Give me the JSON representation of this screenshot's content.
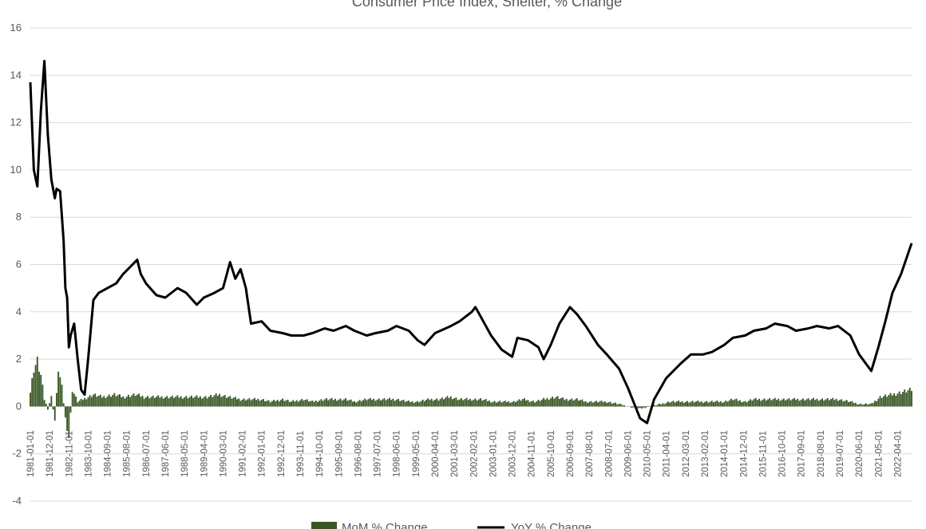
{
  "chart_data": {
    "type": "bar+line",
    "title": "Consumer Price Index, Shelter, % Change",
    "ylim": [
      -4,
      16
    ],
    "yticks": [
      -4,
      -2,
      0,
      2,
      4,
      6,
      8,
      10,
      12,
      14,
      16
    ],
    "grid": true,
    "legend_position": "bottom",
    "xtick_labels": [
      "1981-01-01",
      "1981-12-01",
      "1982-11-01",
      "1983-10-01",
      "1984-09-01",
      "1985-08-01",
      "1986-07-01",
      "1987-06-01",
      "1988-05-01",
      "1989-04-01",
      "1990-03-01",
      "1991-02-01",
      "1992-01-01",
      "1992-12-01",
      "1993-11-01",
      "1994-10-01",
      "1995-09-01",
      "1996-08-01",
      "1997-07-01",
      "1998-06-01",
      "1999-05-01",
      "2000-04-01",
      "2001-03-01",
      "2002-02-01",
      "2003-01-01",
      "2003-12-01",
      "2004-11-01",
      "2005-10-01",
      "2006-09-01",
      "2007-08-01",
      "2008-07-01",
      "2009-06-01",
      "2010-05-01",
      "2011-04-01",
      "2012-03-01",
      "2013-02-01",
      "2014-01-01",
      "2014-12-01",
      "2015-11-01",
      "2016-10-01",
      "2017-09-01",
      "2018-08-01",
      "2019-07-01",
      "2020-06-01",
      "2021-05-01",
      "2022-04-01"
    ],
    "series": [
      {
        "name": "MoM % Change",
        "kind": "bar",
        "color": "#375623",
        "points": [
          [
            "1981-01",
            0.6
          ],
          [
            "1981-03",
            1.6
          ],
          [
            "1981-05",
            1.9
          ],
          [
            "1981-07",
            1.3
          ],
          [
            "1981-09",
            0.3
          ],
          [
            "1981-11",
            -0.1
          ],
          [
            "1982-01",
            0.4
          ],
          [
            "1982-03",
            -0.6
          ],
          [
            "1982-05",
            1.6
          ],
          [
            "1982-07",
            0.8
          ],
          [
            "1982-09",
            -0.5
          ],
          [
            "1982-11",
            -1.3
          ],
          [
            "1983-01",
            0.7
          ],
          [
            "1983-04",
            0.2
          ],
          [
            "1983-07",
            0.3
          ],
          [
            "1983-10",
            0.4
          ],
          [
            "1984-01",
            0.5
          ],
          [
            "1984-06",
            0.4
          ],
          [
            "1985-01",
            0.5
          ],
          [
            "1985-06",
            0.4
          ],
          [
            "1986-01",
            0.5
          ],
          [
            "1986-06",
            0.4
          ],
          [
            "1987-01",
            0.4
          ],
          [
            "1987-06",
            0.4
          ],
          [
            "1988-01",
            0.4
          ],
          [
            "1988-06",
            0.4
          ],
          [
            "1989-01",
            0.4
          ],
          [
            "1989-06",
            0.4
          ],
          [
            "1990-01",
            0.5
          ],
          [
            "1990-06",
            0.4
          ],
          [
            "1991-01",
            0.3
          ],
          [
            "1991-06",
            0.3
          ],
          [
            "1992-01",
            0.3
          ],
          [
            "1992-06",
            0.2
          ],
          [
            "1993-01",
            0.3
          ],
          [
            "1993-06",
            0.2
          ],
          [
            "1994-01",
            0.3
          ],
          [
            "1994-06",
            0.2
          ],
          [
            "1995-01",
            0.3
          ],
          [
            "1995-06",
            0.3
          ],
          [
            "1996-01",
            0.3
          ],
          [
            "1996-06",
            0.2
          ],
          [
            "1997-01",
            0.3
          ],
          [
            "1997-06",
            0.3
          ],
          [
            "1998-01",
            0.3
          ],
          [
            "1998-06",
            0.3
          ],
          [
            "1999-01",
            0.2
          ],
          [
            "1999-06",
            0.2
          ],
          [
            "2000-01",
            0.3
          ],
          [
            "2000-06",
            0.3
          ],
          [
            "2001-01",
            0.4
          ],
          [
            "2001-06",
            0.3
          ],
          [
            "2002-01",
            0.3
          ],
          [
            "2002-06",
            0.3
          ],
          [
            "2003-01",
            0.2
          ],
          [
            "2003-06",
            0.2
          ],
          [
            "2004-01",
            0.2
          ],
          [
            "2004-06",
            0.3
          ],
          [
            "2005-01",
            0.2
          ],
          [
            "2005-06",
            0.3
          ],
          [
            "2006-01",
            0.4
          ],
          [
            "2006-06",
            0.3
          ],
          [
            "2007-01",
            0.3
          ],
          [
            "2007-06",
            0.2
          ],
          [
            "2008-01",
            0.2
          ],
          [
            "2008-06",
            0.2
          ],
          [
            "2009-01",
            0.1
          ],
          [
            "2009-06",
            0.0
          ],
          [
            "2010-01",
            -0.1
          ],
          [
            "2010-06",
            0.0
          ],
          [
            "2011-01",
            0.1
          ],
          [
            "2011-06",
            0.2
          ],
          [
            "2012-01",
            0.2
          ],
          [
            "2012-06",
            0.2
          ],
          [
            "2013-01",
            0.2
          ],
          [
            "2013-06",
            0.2
          ],
          [
            "2014-01",
            0.2
          ],
          [
            "2014-06",
            0.3
          ],
          [
            "2015-01",
            0.2
          ],
          [
            "2015-06",
            0.3
          ],
          [
            "2016-01",
            0.3
          ],
          [
            "2016-06",
            0.3
          ],
          [
            "2017-01",
            0.3
          ],
          [
            "2017-06",
            0.3
          ],
          [
            "2018-01",
            0.3
          ],
          [
            "2018-06",
            0.3
          ],
          [
            "2019-01",
            0.3
          ],
          [
            "2019-06",
            0.3
          ],
          [
            "2020-01",
            0.2
          ],
          [
            "2020-06",
            0.1
          ],
          [
            "2021-01",
            0.1
          ],
          [
            "2021-06",
            0.4
          ],
          [
            "2022-01",
            0.5
          ],
          [
            "2022-06",
            0.6
          ],
          [
            "2022-12",
            0.7
          ]
        ]
      },
      {
        "name": "YoY % Change",
        "kind": "line",
        "color": "#000000",
        "points": [
          [
            "1981-01",
            13.7
          ],
          [
            "1981-03",
            10.0
          ],
          [
            "1981-05",
            9.3
          ],
          [
            "1981-07",
            12.5
          ],
          [
            "1981-09",
            14.6
          ],
          [
            "1981-11",
            11.5
          ],
          [
            "1982-01",
            9.6
          ],
          [
            "1982-03",
            8.8
          ],
          [
            "1982-04",
            9.2
          ],
          [
            "1982-06",
            9.1
          ],
          [
            "1982-08",
            7.0
          ],
          [
            "1982-09",
            5.0
          ],
          [
            "1982-10",
            4.6
          ],
          [
            "1982-11",
            2.5
          ],
          [
            "1982-12",
            3.0
          ],
          [
            "1983-02",
            3.5
          ],
          [
            "1983-04",
            2.0
          ],
          [
            "1983-06",
            0.7
          ],
          [
            "1983-08",
            0.5
          ],
          [
            "1983-10",
            2.0
          ],
          [
            "1984-01",
            4.5
          ],
          [
            "1984-04",
            4.8
          ],
          [
            "1984-09",
            5.0
          ],
          [
            "1985-02",
            5.2
          ],
          [
            "1985-06",
            5.6
          ],
          [
            "1985-10",
            5.9
          ],
          [
            "1986-02",
            6.2
          ],
          [
            "1986-04",
            5.6
          ],
          [
            "1986-07",
            5.2
          ],
          [
            "1987-01",
            4.7
          ],
          [
            "1987-06",
            4.6
          ],
          [
            "1988-01",
            5.0
          ],
          [
            "1988-06",
            4.8
          ],
          [
            "1988-12",
            4.3
          ],
          [
            "1989-04",
            4.6
          ],
          [
            "1989-10",
            4.8
          ],
          [
            "1990-03",
            5.0
          ],
          [
            "1990-07",
            6.1
          ],
          [
            "1990-10",
            5.4
          ],
          [
            "1991-01",
            5.8
          ],
          [
            "1991-04",
            5.0
          ],
          [
            "1991-07",
            3.5
          ],
          [
            "1992-01",
            3.6
          ],
          [
            "1992-06",
            3.2
          ],
          [
            "1993-01",
            3.1
          ],
          [
            "1993-06",
            3.0
          ],
          [
            "1994-01",
            3.0
          ],
          [
            "1994-06",
            3.1
          ],
          [
            "1995-01",
            3.3
          ],
          [
            "1995-06",
            3.2
          ],
          [
            "1996-01",
            3.4
          ],
          [
            "1996-06",
            3.2
          ],
          [
            "1997-01",
            3.0
          ],
          [
            "1997-06",
            3.1
          ],
          [
            "1998-01",
            3.2
          ],
          [
            "1998-06",
            3.4
          ],
          [
            "1999-01",
            3.2
          ],
          [
            "1999-06",
            2.8
          ],
          [
            "1999-10",
            2.6
          ],
          [
            "2000-04",
            3.1
          ],
          [
            "2001-01",
            3.4
          ],
          [
            "2001-06",
            3.6
          ],
          [
            "2002-01",
            4.0
          ],
          [
            "2002-03",
            4.2
          ],
          [
            "2002-06",
            3.8
          ],
          [
            "2002-12",
            3.0
          ],
          [
            "2003-06",
            2.4
          ],
          [
            "2003-12",
            2.1
          ],
          [
            "2004-03",
            2.9
          ],
          [
            "2004-09",
            2.8
          ],
          [
            "2005-03",
            2.5
          ],
          [
            "2005-06",
            2.0
          ],
          [
            "2005-10",
            2.6
          ],
          [
            "2006-03",
            3.5
          ],
          [
            "2006-09",
            4.2
          ],
          [
            "2007-01",
            3.9
          ],
          [
            "2007-06",
            3.4
          ],
          [
            "2008-01",
            2.6
          ],
          [
            "2008-06",
            2.2
          ],
          [
            "2009-01",
            1.6
          ],
          [
            "2009-06",
            0.8
          ],
          [
            "2010-01",
            -0.5
          ],
          [
            "2010-05",
            -0.7
          ],
          [
            "2010-09",
            0.3
          ],
          [
            "2011-04",
            1.2
          ],
          [
            "2011-12",
            1.8
          ],
          [
            "2012-06",
            2.2
          ],
          [
            "2013-01",
            2.2
          ],
          [
            "2013-06",
            2.3
          ],
          [
            "2014-01",
            2.6
          ],
          [
            "2014-06",
            2.9
          ],
          [
            "2015-01",
            3.0
          ],
          [
            "2015-06",
            3.2
          ],
          [
            "2016-01",
            3.3
          ],
          [
            "2016-06",
            3.5
          ],
          [
            "2017-01",
            3.4
          ],
          [
            "2017-06",
            3.2
          ],
          [
            "2018-01",
            3.3
          ],
          [
            "2018-06",
            3.4
          ],
          [
            "2019-01",
            3.3
          ],
          [
            "2019-06",
            3.4
          ],
          [
            "2020-01",
            3.0
          ],
          [
            "2020-06",
            2.2
          ],
          [
            "2020-10",
            1.8
          ],
          [
            "2021-01",
            1.5
          ],
          [
            "2021-05",
            2.5
          ],
          [
            "2021-09",
            3.6
          ],
          [
            "2022-01",
            4.8
          ],
          [
            "2022-06",
            5.6
          ],
          [
            "2022-12",
            6.9
          ]
        ]
      }
    ]
  }
}
